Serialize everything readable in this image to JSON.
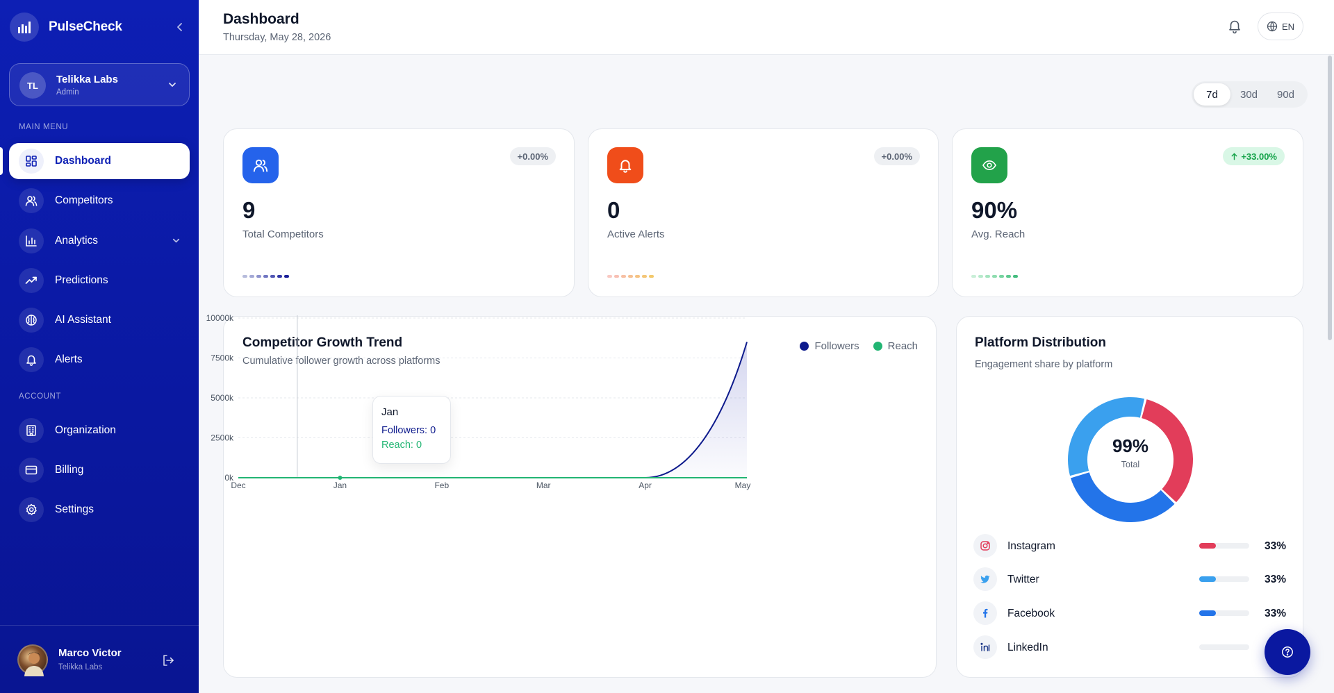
{
  "brand": {
    "name": "PulseCheck"
  },
  "org": {
    "initials": "TL",
    "name": "Telikka Labs",
    "role": "Admin"
  },
  "nav": {
    "main_label": "MAIN MENU",
    "account_label": "ACCOUNT",
    "items": [
      {
        "label": "Dashboard",
        "icon": "dashboard-icon",
        "active": true
      },
      {
        "label": "Competitors",
        "icon": "users-icon"
      },
      {
        "label": "Analytics",
        "icon": "bar-chart-icon",
        "expandable": true
      },
      {
        "label": "Predictions",
        "icon": "trending-up-icon"
      },
      {
        "label": "AI Assistant",
        "icon": "brain-icon"
      },
      {
        "label": "Alerts",
        "icon": "bell-icon"
      }
    ],
    "account_items": [
      {
        "label": "Organization",
        "icon": "building-icon"
      },
      {
        "label": "Billing",
        "icon": "credit-card-icon"
      },
      {
        "label": "Settings",
        "icon": "gear-icon"
      }
    ]
  },
  "user": {
    "name": "Marco Victor",
    "org": "Telikka Labs"
  },
  "header": {
    "title": "Dashboard",
    "date": "Thursday, May 28, 2026",
    "lang": "EN"
  },
  "range": {
    "options": [
      "7d",
      "30d",
      "90d"
    ],
    "selected": "7d"
  },
  "stats": [
    {
      "value": "9",
      "label": "Total Competitors",
      "badge": "+0.00%",
      "color": "#2563eb"
    },
    {
      "value": "0",
      "label": "Active Alerts",
      "badge": "+0.00%",
      "color": "#f04d1a"
    },
    {
      "value": "90%",
      "label": "Avg. Reach",
      "badge": "+33.00%",
      "color": "#22a24a"
    }
  ],
  "growth": {
    "title": "Competitor Growth Trend",
    "subtitle": "Cumulative follower growth across platforms",
    "tooltip": {
      "title": "Jan",
      "followers": "Followers: 0",
      "reach": "Reach: 0"
    }
  },
  "platform": {
    "title": "Platform Distribution",
    "subtitle": "Engagement share by platform",
    "total_value": "99%",
    "total_label": "Total"
  },
  "chart_data": [
    {
      "type": "line",
      "title": "Competitor Growth Trend",
      "subtitle": "Cumulative follower growth across platforms",
      "categories": [
        "Dec",
        "Jan",
        "Feb",
        "Mar",
        "Apr",
        "May"
      ],
      "y_ticks": [
        "0k",
        "2500k",
        "5000k",
        "7500k",
        "10000k"
      ],
      "ylim": [
        0,
        10000
      ],
      "yunit": "k",
      "legend_position": "top-right",
      "grid": true,
      "series": [
        {
          "name": "Followers",
          "color": "#0d1a8c",
          "values": [
            0,
            0,
            0,
            0,
            0,
            8500
          ]
        },
        {
          "name": "Reach",
          "color": "#22b573",
          "values": [
            0,
            0,
            0,
            0,
            0,
            0
          ]
        }
      ]
    },
    {
      "type": "pie",
      "title": "Platform Distribution",
      "subtitle": "Engagement share by platform",
      "center_label": "99%",
      "center_sublabel": "Total",
      "slices": [
        {
          "name": "Instagram",
          "value": 33,
          "label": "33%",
          "color": "#e23d5a",
          "icon": "instagram-icon"
        },
        {
          "name": "Twitter",
          "value": 33,
          "label": "33%",
          "color": "#3aa0ee",
          "icon": "twitter-icon"
        },
        {
          "name": "Facebook",
          "value": 33,
          "label": "33%",
          "color": "#2374e9",
          "icon": "facebook-icon"
        },
        {
          "name": "LinkedIn",
          "value": 0,
          "label": "",
          "color": "#0a66c2",
          "icon": "linkedin-icon"
        }
      ]
    }
  ]
}
